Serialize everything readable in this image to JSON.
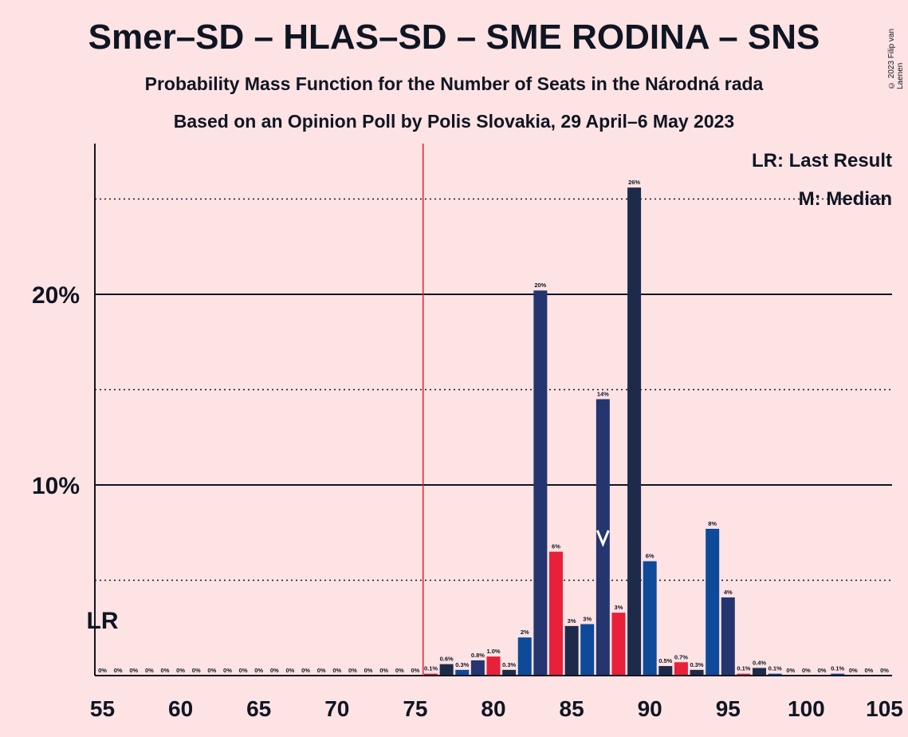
{
  "header": {
    "title": "Smer–SD – HLAS–SD – SME RODINA – SNS",
    "subtitle": "Probability Mass Function for the Number of Seats in the Národná rada",
    "source": "Based on an Opinion Poll by Polis Slovakia, 29 April–6 May 2023",
    "copyright": "© 2023 Filip van Laenen"
  },
  "legend": {
    "last_result": "LR: Last Result",
    "median": "M: Median"
  },
  "colors": {
    "background": "#fde3e4",
    "majority_line": "#e0202e",
    "axis": "#101522",
    "bar_palette": [
      "#1e2a4a",
      "#24356f",
      "#0d4a9a",
      "#e8203a"
    ]
  },
  "chart_data": {
    "type": "bar",
    "title": "Smer–SD – HLAS–SD – SME RODINA – SNS",
    "subtitle": "Probability Mass Function for the Number of Seats in the Národná rada",
    "xlabel": "",
    "ylabel": "",
    "x": [
      55,
      56,
      57,
      58,
      59,
      60,
      61,
      62,
      63,
      64,
      65,
      66,
      67,
      68,
      69,
      70,
      71,
      72,
      73,
      74,
      75,
      76,
      77,
      78,
      79,
      80,
      81,
      82,
      83,
      84,
      85,
      86,
      87,
      88,
      89,
      90,
      91,
      92,
      93,
      94,
      95,
      96,
      97,
      98,
      99,
      100,
      101,
      102,
      103,
      104,
      105
    ],
    "values": [
      0,
      0,
      0,
      0,
      0,
      0,
      0,
      0,
      0,
      0,
      0,
      0,
      0,
      0,
      0,
      0,
      0,
      0,
      0,
      0,
      0,
      0.1,
      0.6,
      0.3,
      0.8,
      1.0,
      0.3,
      2,
      20.2,
      6.5,
      2.6,
      2.7,
      14.5,
      3.3,
      25.6,
      6,
      0.5,
      0.7,
      0.3,
      7.7,
      4.1,
      0.1,
      0.4,
      0.1,
      0,
      0,
      0,
      0.1,
      0,
      0,
      0
    ],
    "labels": [
      "0%",
      "0%",
      "0%",
      "0%",
      "0%",
      "0%",
      "0%",
      "0%",
      "0%",
      "0%",
      "0%",
      "0%",
      "0%",
      "0%",
      "0%",
      "0%",
      "0%",
      "0%",
      "0%",
      "0%",
      "0%",
      "0.1%",
      "0.6%",
      "0.3%",
      "0.8%",
      "1.0%",
      "0.3%",
      "2%",
      "20%",
      "6%",
      "3%",
      "3%",
      "14%",
      "3%",
      "26%",
      "6%",
      "0.5%",
      "0.7%",
      "0.3%",
      "8%",
      "4%",
      "0.1%",
      "0.4%",
      "0.1%",
      "0%",
      "0%",
      "0%",
      "0.1%",
      "0%",
      "0%",
      "0%"
    ],
    "color_index": [
      0,
      1,
      2,
      3,
      0,
      1,
      2,
      3,
      0,
      1,
      2,
      3,
      0,
      1,
      2,
      3,
      0,
      1,
      2,
      3,
      0,
      3,
      0,
      2,
      1,
      3,
      0,
      2,
      1,
      3,
      0,
      2,
      1,
      3,
      0,
      2,
      0,
      3,
      0,
      2,
      1,
      3,
      0,
      2,
      1,
      3,
      0,
      2,
      1,
      3,
      0
    ],
    "xticks": [
      "55",
      "60",
      "65",
      "70",
      "75",
      "80",
      "85",
      "90",
      "95",
      "100",
      "105"
    ],
    "xlim": [
      55,
      105
    ],
    "ylim": [
      0,
      28
    ],
    "yticks": [
      "10%",
      "20%"
    ],
    "ytick_values": [
      10,
      20
    ],
    "dotted_gridlines": [
      5,
      15,
      25
    ],
    "majority_threshold": 76,
    "last_result_seat": 55,
    "last_result_label": "LR",
    "median_seat": 87,
    "grid": true,
    "legend_position": "top-right"
  }
}
